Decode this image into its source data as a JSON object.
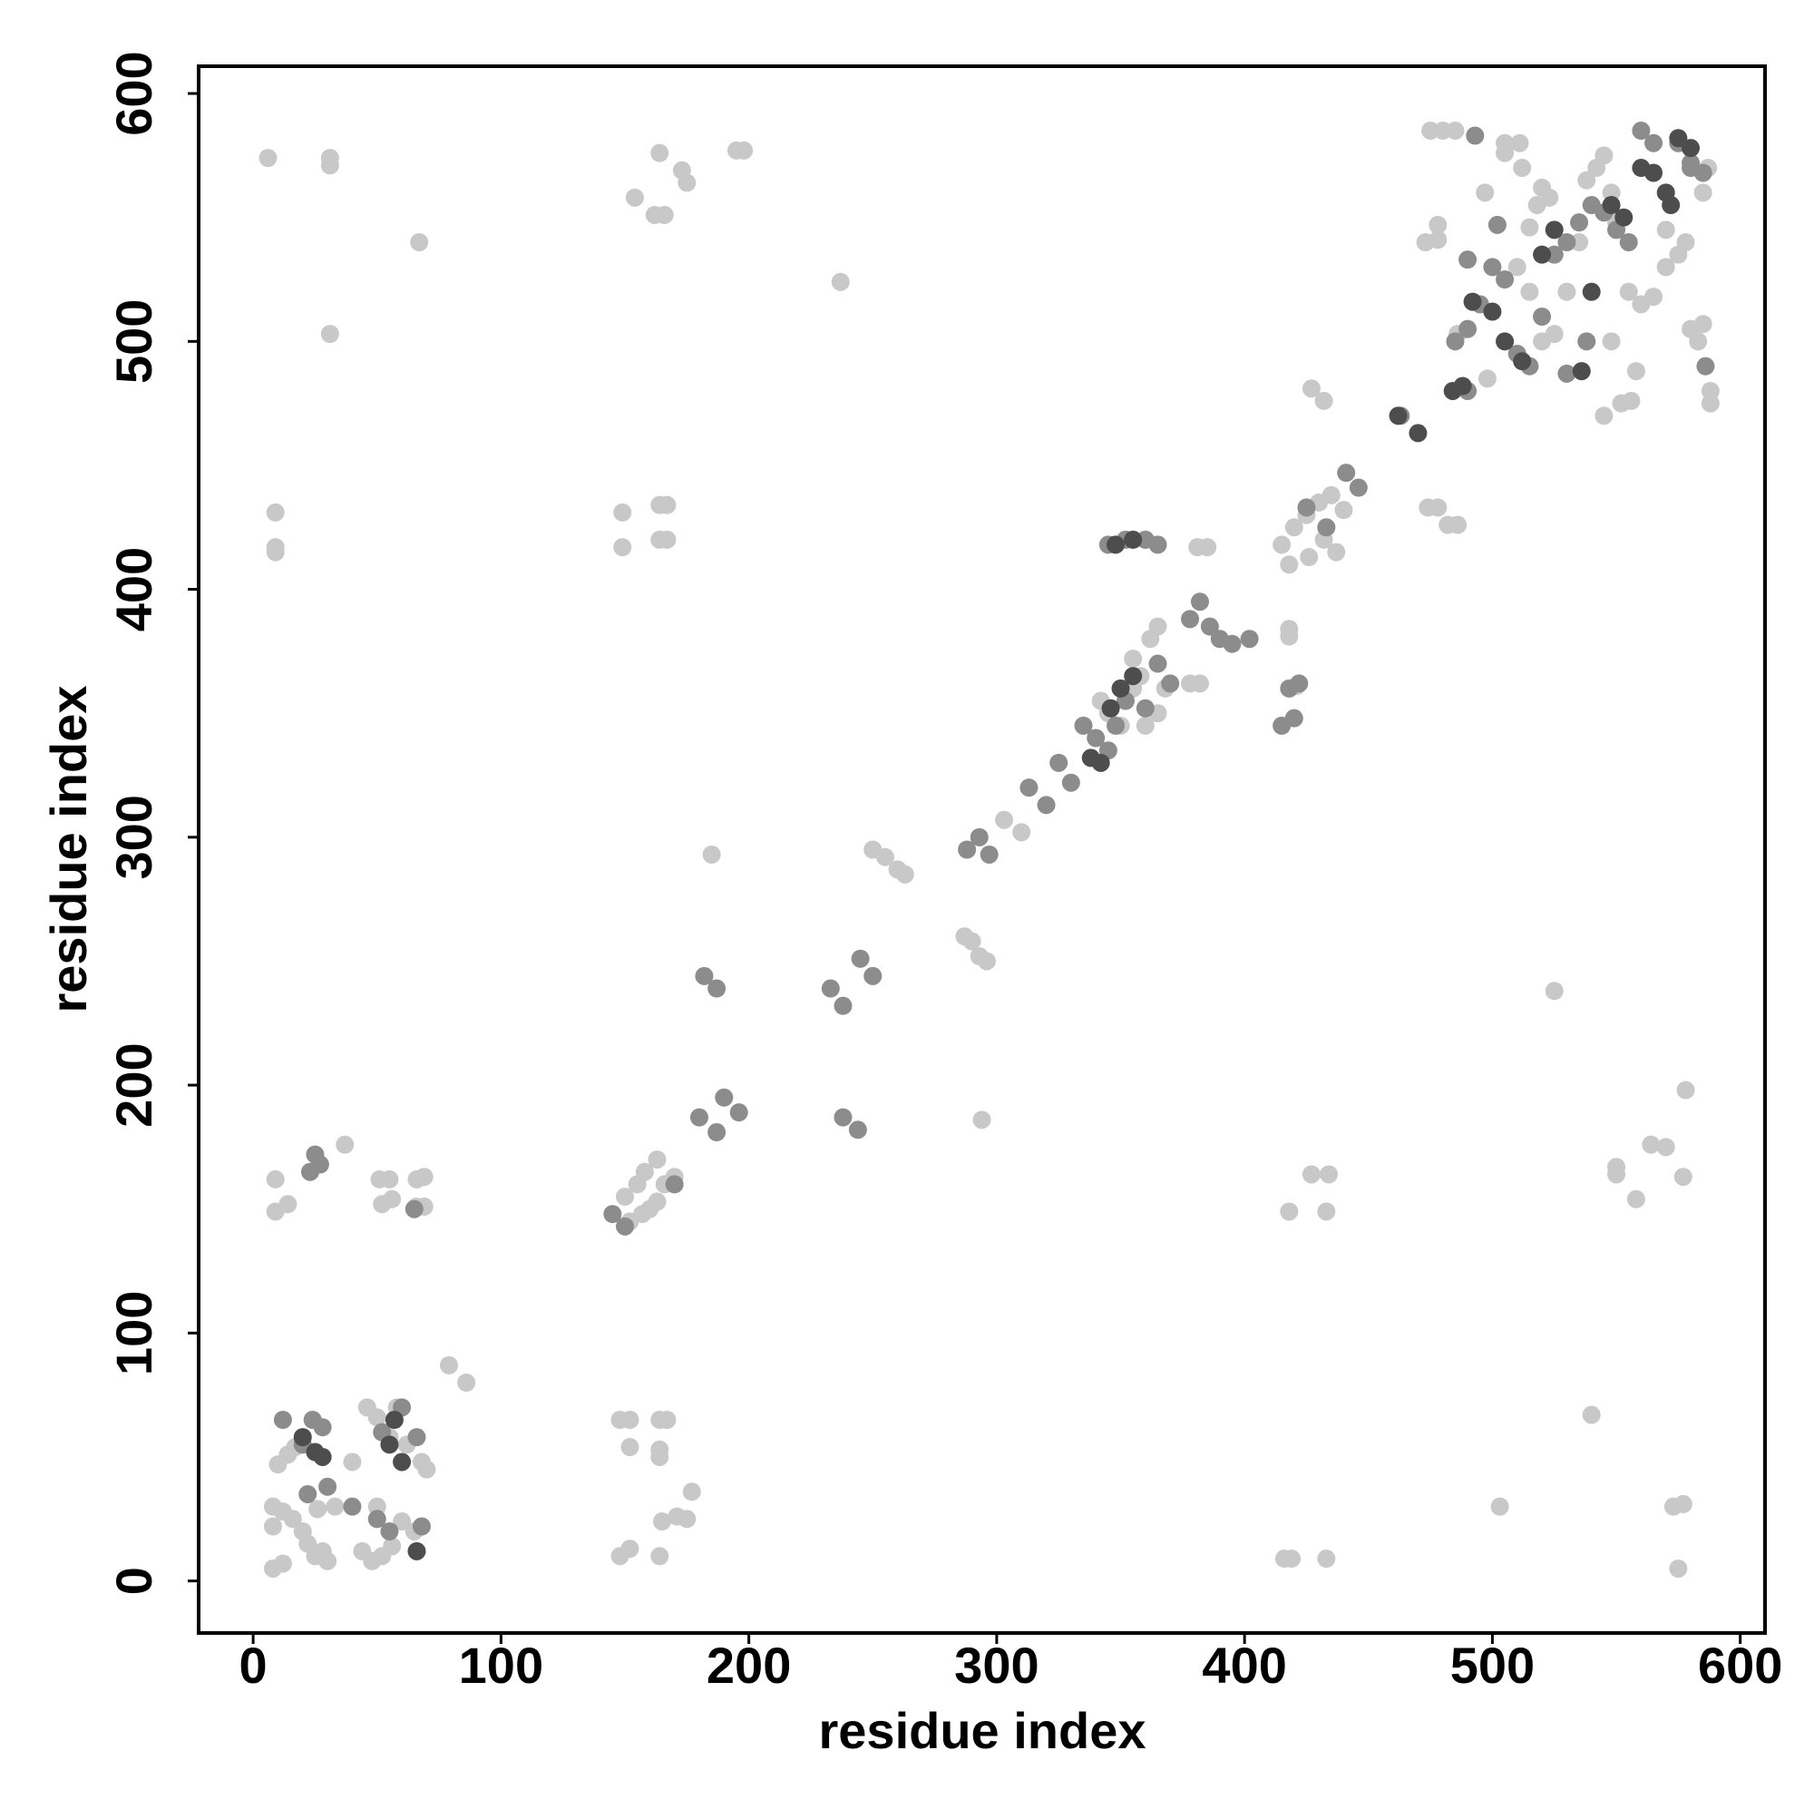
{
  "chart_data": {
    "type": "scatter",
    "xlabel": "residue index",
    "ylabel": "residue index",
    "xlim": [
      -22,
      610
    ],
    "ylim": [
      -21,
      611
    ],
    "xticks": [
      0,
      100,
      200,
      300,
      400,
      500,
      600
    ],
    "yticks": [
      0,
      100,
      200,
      300,
      400,
      500,
      600
    ],
    "series": [
      {
        "color": "#c8c8c8",
        "x": [
          6,
          31,
          31,
          67,
          31,
          9,
          9,
          9,
          164,
          154,
          173,
          175,
          162,
          166,
          195,
          198,
          237,
          149,
          149,
          164,
          167,
          164,
          167,
          9,
          9,
          14,
          51,
          55,
          52,
          56,
          66,
          69,
          66,
          69,
          37,
          79,
          86,
          148,
          152,
          164,
          167,
          152,
          164,
          164,
          148,
          152,
          164,
          165,
          177,
          171,
          175,
          10,
          14,
          17,
          8,
          12,
          8,
          16,
          20,
          25,
          30,
          22,
          28,
          46,
          50,
          58,
          62,
          68,
          70,
          55,
          52,
          44,
          40,
          26,
          33,
          12,
          8,
          48,
          56,
          65,
          60,
          50,
          150,
          155,
          158,
          160,
          163,
          166,
          170,
          152,
          163,
          157,
          185,
          250,
          255,
          260,
          263,
          287,
          290,
          293,
          296,
          294,
          303,
          310,
          342,
          345,
          350,
          355,
          358,
          360,
          365,
          362,
          365,
          368,
          355,
          378,
          382,
          381,
          385,
          415,
          420,
          425,
          430,
          435,
          418,
          426,
          432,
          437,
          440,
          418,
          418,
          421,
          427,
          432,
          427,
          434,
          418,
          433,
          416,
          419,
          433,
          474,
          478,
          482,
          486,
          475,
          480,
          485,
          497,
          473,
          478,
          478,
          486,
          498,
          505,
          511,
          505,
          512,
          515,
          518,
          520,
          523,
          510,
          515,
          520,
          525,
          530,
          535,
          538,
          542,
          545,
          548,
          550,
          555,
          560,
          565,
          570,
          575,
          578,
          580,
          583,
          585,
          545,
          552,
          556,
          558,
          585,
          587,
          588,
          588,
          570,
          548,
          503,
          525,
          540,
          550,
          550,
          558,
          564,
          570,
          577,
          578,
          573,
          577,
          575
        ],
        "values": [
          574,
          574,
          571,
          540,
          503,
          431,
          417,
          415,
          576,
          558,
          569,
          564,
          551,
          551,
          577,
          577,
          524,
          431,
          417,
          434,
          434,
          420,
          420,
          162,
          149,
          152,
          162,
          162,
          152,
          154,
          162,
          163,
          151,
          151,
          176,
          87,
          80,
          65,
          65,
          65,
          65,
          54,
          53,
          50,
          10,
          13,
          10,
          24,
          36,
          26,
          25,
          47,
          51,
          54,
          30,
          28,
          22,
          25,
          20,
          10,
          8,
          15,
          12,
          70,
          66,
          70,
          55,
          48,
          45,
          58,
          10,
          12,
          48,
          29,
          30,
          7,
          5,
          8,
          14,
          20,
          24,
          30,
          155,
          160,
          165,
          150,
          153,
          160,
          163,
          145,
          170,
          148,
          293,
          295,
          292,
          287,
          285,
          260,
          258,
          252,
          250,
          186,
          307,
          302,
          355,
          350,
          345,
          360,
          365,
          345,
          350,
          380,
          385,
          360,
          372,
          362,
          362,
          417,
          417,
          418,
          425,
          430,
          435,
          438,
          410,
          413,
          420,
          415,
          432,
          384,
          381,
          361,
          481,
          476,
          164,
          164,
          149,
          149,
          9,
          9,
          9,
          433,
          433,
          426,
          426,
          585,
          585,
          585,
          560,
          540,
          547,
          541,
          503,
          485,
          580,
          580,
          576,
          570,
          546,
          555,
          562,
          558,
          530,
          520,
          500,
          503,
          520,
          540,
          565,
          570,
          575,
          560,
          548,
          520,
          515,
          518,
          530,
          535,
          540,
          505,
          500,
          507,
          470,
          475,
          476,
          488,
          560,
          570,
          480,
          475,
          545,
          500,
          30,
          238,
          67,
          164,
          167,
          154,
          176,
          175,
          163,
          198,
          30,
          31,
          5
        ]
      },
      {
        "color": "#8c8c8c",
        "x": [
          25,
          27,
          23,
          20,
          24,
          28,
          12,
          22,
          30,
          40,
          52,
          60,
          66,
          68,
          55,
          50,
          65,
          145,
          150,
          170,
          180,
          187,
          190,
          196,
          182,
          187,
          233,
          238,
          245,
          250,
          238,
          244,
          288,
          293,
          297,
          313,
          320,
          325,
          330,
          335,
          340,
          345,
          348,
          352,
          360,
          365,
          370,
          378,
          382,
          386,
          390,
          395,
          402,
          352,
          345,
          360,
          365,
          418,
          422,
          420,
          415,
          425,
          433,
          441,
          446,
          463,
          485,
          490,
          495,
          500,
          505,
          510,
          515,
          520,
          525,
          530,
          535,
          540,
          545,
          550,
          555,
          560,
          565,
          575,
          580,
          585,
          490,
          490,
          493,
          502,
          530,
          538,
          586,
          580
        ],
        "values": [
          172,
          168,
          165,
          55,
          65,
          62,
          65,
          35,
          38,
          30,
          60,
          70,
          58,
          22,
          20,
          25,
          150,
          148,
          143,
          160,
          187,
          181,
          195,
          189,
          244,
          239,
          239,
          232,
          251,
          244,
          187,
          182,
          295,
          300,
          293,
          320,
          313,
          330,
          322,
          345,
          340,
          335,
          345,
          355,
          352,
          370,
          362,
          388,
          395,
          385,
          380,
          378,
          380,
          420,
          418,
          420,
          418,
          360,
          362,
          348,
          345,
          433,
          425,
          447,
          441,
          470,
          500,
          505,
          515,
          530,
          525,
          495,
          490,
          510,
          535,
          540,
          548,
          555,
          552,
          545,
          540,
          585,
          580,
          580,
          572,
          568,
          533,
          480,
          583,
          547,
          487,
          500,
          490,
          570
        ]
      },
      {
        "color": "#4d4d4d",
        "x": [
          57,
          55,
          25,
          28,
          20,
          60,
          66,
          346,
          350,
          355,
          342,
          338,
          348,
          355,
          470,
          484,
          488,
          492,
          500,
          505,
          512,
          520,
          525,
          540,
          548,
          553,
          560,
          565,
          570,
          572,
          575,
          580,
          462,
          536
        ],
        "values": [
          65,
          55,
          52,
          50,
          58,
          48,
          12,
          352,
          360,
          365,
          330,
          332,
          418,
          420,
          463,
          480,
          482,
          516,
          512,
          500,
          492,
          535,
          545,
          520,
          555,
          550,
          570,
          568,
          560,
          555,
          582,
          578,
          470,
          488
        ]
      }
    ]
  }
}
